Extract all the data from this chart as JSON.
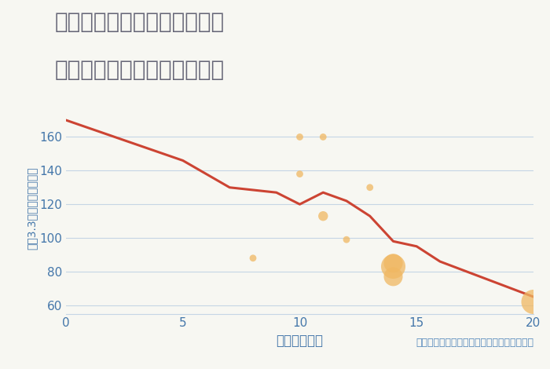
{
  "title_line1": "神奈川県横浜市緑区新治町の",
  "title_line2": "駅距離別中古マンション価格",
  "xlabel": "駅距離（分）",
  "ylabel": "坪（3.3㎡）単価（万円）",
  "annotation": "円の大きさは、取引のあった物件面積を示す",
  "background_color": "#f7f7f2",
  "plot_bg_color": "#f7f7f2",
  "line_color": "#cc4433",
  "line_x": [
    0,
    5,
    7,
    9,
    10,
    11,
    12,
    13,
    14,
    15,
    16,
    20
  ],
  "line_y": [
    170,
    146,
    130,
    127,
    120,
    127,
    122,
    113,
    98,
    95,
    86,
    65
  ],
  "scatter_x": [
    8,
    10,
    10,
    11,
    11,
    12,
    13,
    14,
    14,
    14,
    20
  ],
  "scatter_y": [
    88,
    138,
    160,
    160,
    113,
    99,
    130,
    77,
    83,
    85,
    62
  ],
  "scatter_size": [
    40,
    40,
    40,
    40,
    80,
    40,
    40,
    300,
    500,
    300,
    500
  ],
  "scatter_color": "#f0b862",
  "scatter_alpha": 0.75,
  "xlim": [
    0,
    20
  ],
  "ylim": [
    55,
    180
  ],
  "yticks": [
    60,
    80,
    100,
    120,
    140,
    160
  ],
  "xticks": [
    0,
    5,
    10,
    15,
    20
  ],
  "grid_color": "#c5d5e5",
  "title_color": "#666677",
  "label_color": "#4477aa",
  "annotation_color": "#5588bb",
  "title_fontsize": 20,
  "label_fontsize": 12,
  "tick_fontsize": 11,
  "annotation_fontsize": 9
}
